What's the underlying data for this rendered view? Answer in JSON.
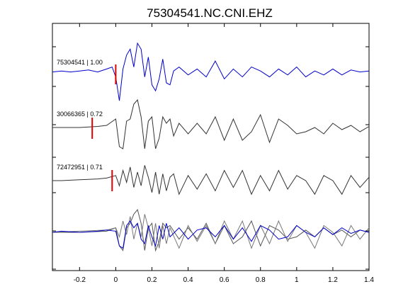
{
  "chart_data": {
    "type": "line",
    "title": "75304541.NC.CNI.EHZ",
    "xlabel": "",
    "ylabel": "",
    "xlim": [
      -0.35,
      1.4
    ],
    "x_ticks": [
      -0.2,
      0,
      0.2,
      0.4,
      0.6,
      0.8,
      1,
      1.2,
      1.4
    ],
    "x_tick_labels": [
      "-0.2",
      "0",
      "0.2",
      "0.4",
      "0.6",
      "0.8",
      "1",
      "1.2",
      "1.4"
    ],
    "grid": false,
    "legend": "none",
    "pick_color": "#e00000",
    "traces": [
      {
        "label": "75304541 | 1.00",
        "color": "#0000cc",
        "pick_time": 0.0,
        "waveform": {
          "x": [
            -0.35,
            -0.3,
            -0.25,
            -0.2,
            -0.15,
            -0.1,
            -0.05,
            -0.02,
            0.0,
            0.02,
            0.04,
            0.06,
            0.08,
            0.1,
            0.12,
            0.14,
            0.16,
            0.18,
            0.2,
            0.22,
            0.24,
            0.26,
            0.28,
            0.3,
            0.32,
            0.35,
            0.4,
            0.45,
            0.5,
            0.55,
            0.6,
            0.65,
            0.7,
            0.75,
            0.8,
            0.85,
            0.9,
            0.95,
            1.0,
            1.05,
            1.1,
            1.15,
            1.2,
            1.25,
            1.3,
            1.35,
            1.4
          ],
          "y": [
            0.05,
            0.1,
            0.05,
            0.1,
            0.15,
            0.05,
            0.2,
            0.3,
            -0.2,
            -1.4,
            0.2,
            0.9,
            1.2,
            0.3,
            1.5,
            1.2,
            -0.2,
            0.8,
            -0.6,
            -0.9,
            -0.3,
            0.7,
            -0.5,
            -0.6,
            0.1,
            0.3,
            -0.1,
            0.2,
            -0.2,
            0.6,
            -0.3,
            0.2,
            -0.2,
            0.3,
            0.1,
            -0.2,
            0.2,
            -0.1,
            0.3,
            -0.2,
            0.1,
            -0.1,
            0.2,
            -0.1,
            0.15,
            0.05,
            0.1
          ]
        }
      },
      {
        "label": "30066365 | 0.72",
        "color": "#333333",
        "pick_time": -0.13,
        "waveform": {
          "x": [
            -0.35,
            -0.3,
            -0.2,
            -0.1,
            -0.05,
            0.0,
            0.02,
            0.04,
            0.06,
            0.08,
            0.1,
            0.12,
            0.14,
            0.16,
            0.18,
            0.2,
            0.22,
            0.24,
            0.26,
            0.28,
            0.3,
            0.32,
            0.35,
            0.4,
            0.45,
            0.5,
            0.55,
            0.6,
            0.65,
            0.7,
            0.75,
            0.8,
            0.85,
            0.9,
            0.95,
            1.0,
            1.05,
            1.1,
            1.15,
            1.2,
            1.25,
            1.3,
            1.35,
            1.4
          ],
          "y": [
            0.0,
            0.0,
            0.0,
            0.05,
            0.1,
            0.4,
            -0.9,
            -1.0,
            0.3,
            0.4,
            1.1,
            1.3,
            0.5,
            -1.0,
            0.3,
            0.5,
            -1.0,
            -0.5,
            0.5,
            0.2,
            0.4,
            -0.4,
            0.2,
            -0.3,
            0.2,
            -0.3,
            0.5,
            -0.6,
            0.4,
            -0.6,
            -0.2,
            0.6,
            -0.7,
            0.4,
            0.1,
            -0.3,
            -0.2,
            0.0,
            -0.3,
            0.2,
            -0.1,
            0.1,
            -0.2,
            0.05
          ]
        }
      },
      {
        "label": "72472951 | 0.71",
        "color": "#333333",
        "pick_time": -0.02,
        "waveform": {
          "x": [
            -0.35,
            -0.3,
            -0.2,
            -0.1,
            -0.05,
            0.0,
            0.02,
            0.04,
            0.06,
            0.08,
            0.1,
            0.12,
            0.14,
            0.16,
            0.18,
            0.2,
            0.22,
            0.24,
            0.26,
            0.28,
            0.3,
            0.32,
            0.35,
            0.4,
            0.45,
            0.5,
            0.55,
            0.6,
            0.65,
            0.7,
            0.75,
            0.8,
            0.85,
            0.9,
            0.95,
            1.0,
            1.05,
            1.1,
            1.15,
            1.2,
            1.25,
            1.3,
            1.35,
            1.4
          ],
          "y": [
            0.0,
            0.0,
            0.05,
            0.1,
            0.15,
            0.3,
            -0.3,
            0.6,
            -0.1,
            0.8,
            -0.4,
            0.5,
            -0.3,
            0.9,
            0.2,
            -0.7,
            0.5,
            -0.8,
            0.4,
            -0.6,
            0.2,
            0.4,
            -0.8,
            0.3,
            -0.5,
            0.4,
            -0.6,
            0.6,
            -0.4,
            0.6,
            -0.8,
            0.3,
            -0.6,
            0.6,
            -0.5,
            0.3,
            0.0,
            -0.8,
            0.3,
            0.0,
            -0.8,
            0.3,
            -0.4,
            0.2
          ]
        }
      },
      {
        "label": "",
        "color": "#0000cc",
        "pick_time": null,
        "waveform": {
          "x": [
            -0.35,
            -0.3,
            -0.2,
            -0.1,
            -0.05,
            0.0,
            0.02,
            0.04,
            0.06,
            0.08,
            0.1,
            0.12,
            0.14,
            0.16,
            0.18,
            0.2,
            0.22,
            0.24,
            0.26,
            0.28,
            0.3,
            0.35,
            0.4,
            0.45,
            0.5,
            0.55,
            0.6,
            0.65,
            0.7,
            0.75,
            0.8,
            0.85,
            0.9,
            0.95,
            1.0,
            1.05,
            1.1,
            1.15,
            1.2,
            1.25,
            1.3,
            1.35,
            1.4
          ],
          "y": [
            0.0,
            0.05,
            0.0,
            0.05,
            0.1,
            0.05,
            -0.6,
            -0.7,
            0.3,
            0.5,
            0.2,
            0.4,
            -0.3,
            -0.5,
            0.3,
            -0.2,
            -0.6,
            0.3,
            -0.3,
            0.4,
            -0.2,
            0.2,
            -0.3,
            0.1,
            0.2,
            -0.2,
            0.3,
            -0.3,
            0.2,
            -0.4,
            0.3,
            0.1,
            -0.3,
            -0.2,
            0.3,
            0.0,
            -0.2,
            0.2,
            -0.1,
            0.2,
            -0.05,
            0.1,
            0.0
          ]
        }
      }
    ],
    "overlay_gray": [
      {
        "color": "#555555",
        "waveform": {
          "x": [
            -0.35,
            -0.2,
            -0.05,
            0.0,
            0.02,
            0.04,
            0.06,
            0.08,
            0.1,
            0.12,
            0.14,
            0.16,
            0.18,
            0.2,
            0.22,
            0.24,
            0.26,
            0.28,
            0.3,
            0.35,
            0.4,
            0.45,
            0.5,
            0.55,
            0.6,
            0.65,
            0.7,
            0.75,
            0.8,
            0.85,
            0.9,
            0.95,
            1.0,
            1.05,
            1.1,
            1.15,
            1.2,
            1.25,
            1.3,
            1.35,
            1.4
          ],
          "y": [
            0.0,
            0.0,
            0.05,
            0.2,
            -0.6,
            -0.8,
            0.2,
            0.4,
            0.8,
            1.0,
            0.4,
            -0.8,
            0.2,
            0.4,
            -0.8,
            -0.4,
            0.4,
            0.2,
            0.3,
            -0.3,
            0.2,
            -0.3,
            0.4,
            -0.5,
            0.3,
            -0.5,
            -0.2,
            0.5,
            -0.6,
            0.3,
            0.1,
            -0.3,
            -0.2,
            0.1,
            -0.2,
            0.2,
            -0.1,
            0.1,
            -0.2,
            0.1,
            0.0
          ]
        }
      },
      {
        "color": "#777777",
        "waveform": {
          "x": [
            -0.35,
            -0.2,
            -0.05,
            0.0,
            0.02,
            0.04,
            0.06,
            0.08,
            0.1,
            0.12,
            0.14,
            0.16,
            0.18,
            0.2,
            0.22,
            0.24,
            0.26,
            0.28,
            0.3,
            0.35,
            0.4,
            0.45,
            0.5,
            0.55,
            0.6,
            0.65,
            0.7,
            0.75,
            0.8,
            0.85,
            0.9,
            0.95,
            1.0,
            1.05,
            1.1,
            1.15,
            1.2,
            1.25,
            1.3,
            1.35,
            1.4
          ],
          "y": [
            0.0,
            0.05,
            0.1,
            0.2,
            -0.2,
            0.5,
            -0.1,
            0.7,
            -0.3,
            0.4,
            -0.2,
            0.8,
            0.2,
            -0.6,
            0.4,
            -0.7,
            0.3,
            -0.5,
            0.2,
            -0.7,
            0.3,
            -0.4,
            0.3,
            -0.5,
            0.5,
            -0.3,
            0.5,
            -0.7,
            0.3,
            -0.5,
            0.5,
            -0.4,
            0.3,
            0.0,
            -0.7,
            0.3,
            0.0,
            -0.6,
            0.3,
            -0.3,
            0.2
          ]
        }
      }
    ],
    "annotations": [
      "75304541 | 1.00",
      "30066365 | 0.72",
      "72472951 | 0.71"
    ]
  }
}
